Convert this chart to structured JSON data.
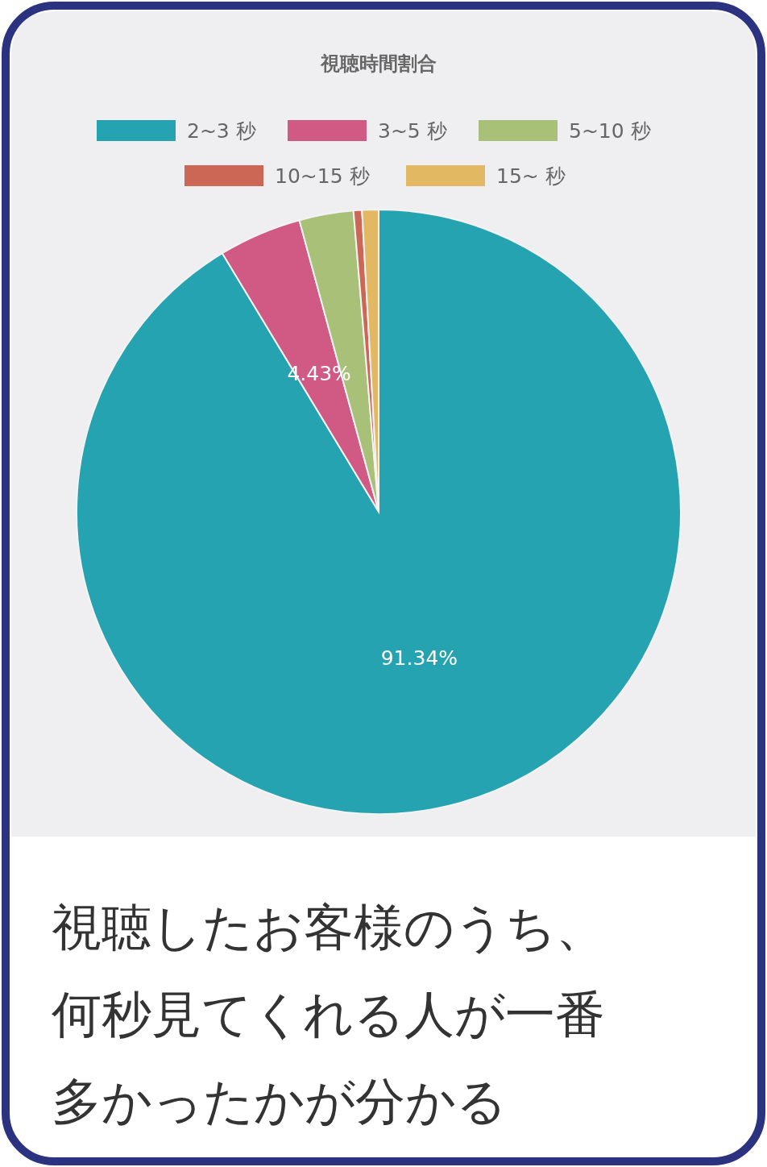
{
  "chart_data": {
    "type": "pie",
    "title": "視聴時間割合",
    "categories": [
      "2~3 秒",
      "3~5 秒",
      "5~10 秒",
      "10~15 秒",
      "15~ 秒"
    ],
    "values": [
      91.34,
      4.43,
      2.9,
      0.45,
      0.88
    ],
    "colors": [
      "#26a3b1",
      "#d05a84",
      "#a8c077",
      "#cc6655",
      "#e2b863"
    ],
    "value_labels": [
      "91.34%",
      "4.43%",
      null,
      null,
      null
    ],
    "legend": "top",
    "annotations": [
      "視聴したお客様のうち、何秒見てくれる人が一番多かったかが分かる"
    ]
  }
}
